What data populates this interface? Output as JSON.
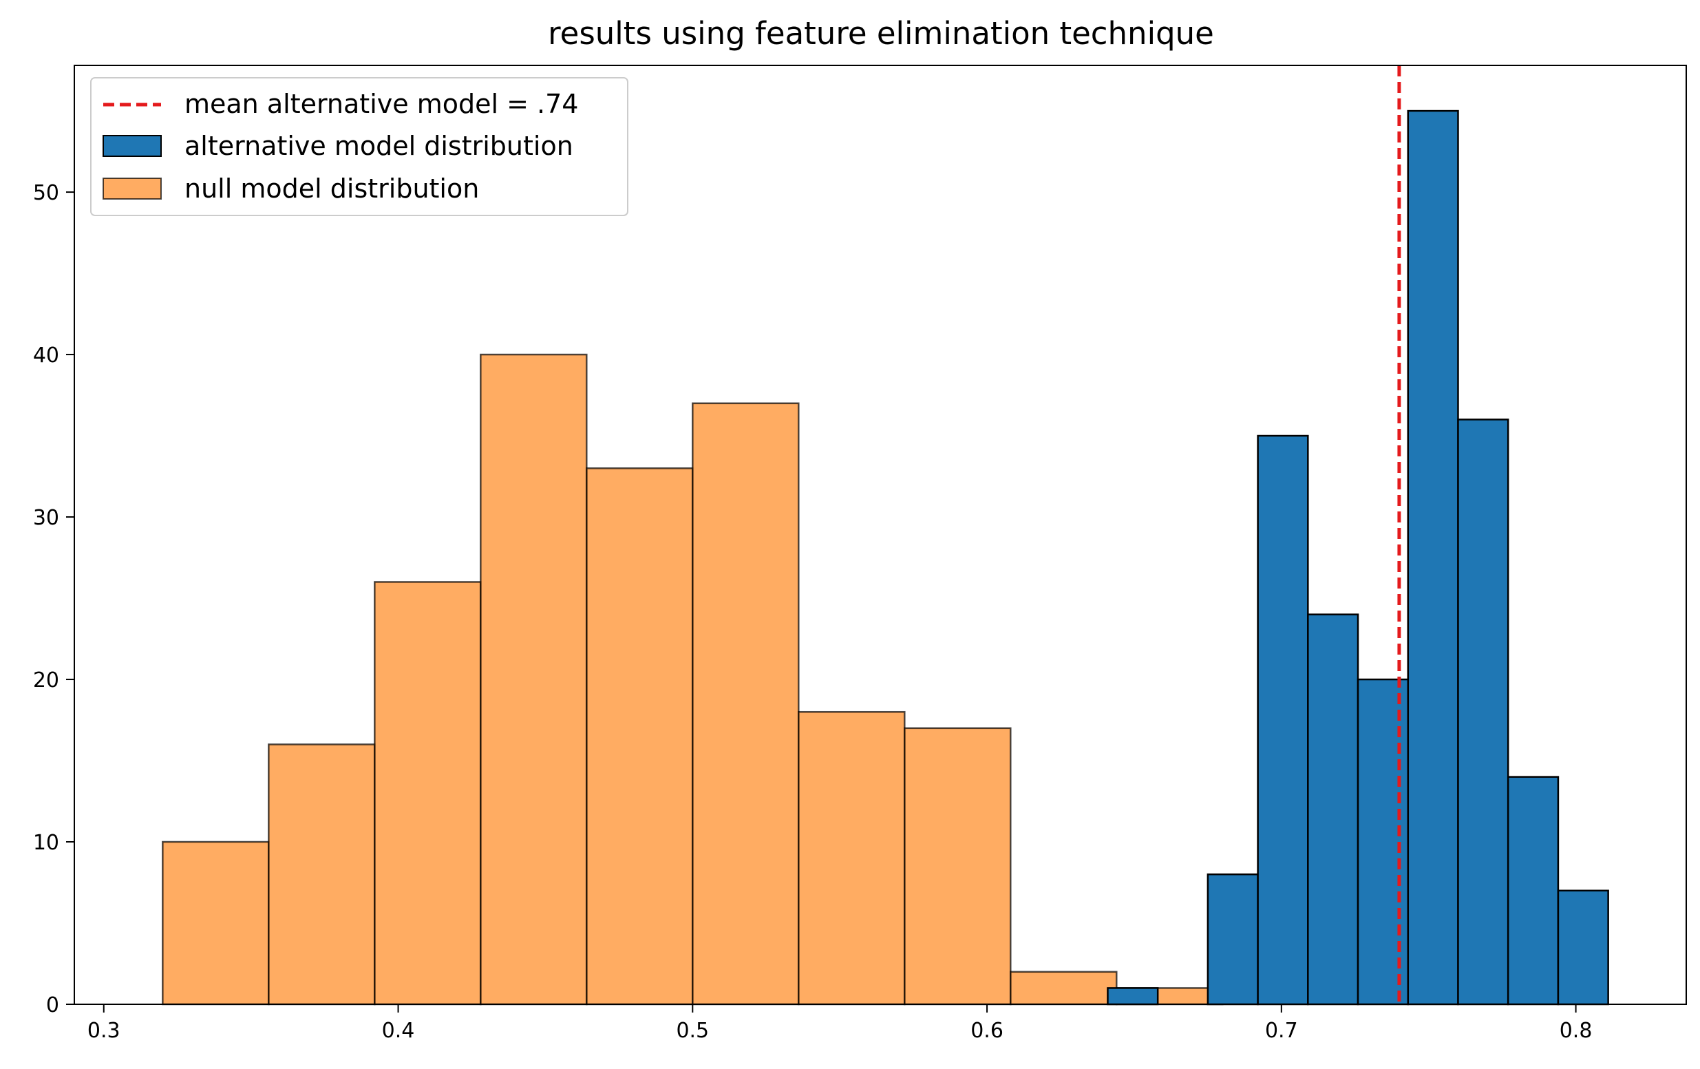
{
  "chart_data": {
    "type": "histogram",
    "title": "results using feature elimination technique",
    "xlabel": "",
    "ylabel": "",
    "xlim": [
      0.29,
      0.8375
    ],
    "ylim": [
      0,
      57.8
    ],
    "xticks": [
      "0.3",
      "0.4",
      "0.5",
      "0.6",
      "0.7",
      "0.8"
    ],
    "yticks": [
      "0",
      "10",
      "20",
      "30",
      "40",
      "50"
    ],
    "grid": false,
    "legend_position": "top-left",
    "series": [
      {
        "name": "null model distribution",
        "color": "#ff7f0e",
        "alpha": 0.65,
        "bin_edges": [
          0.32,
          0.356,
          0.392,
          0.428,
          0.464,
          0.5,
          0.536,
          0.572,
          0.608,
          0.644,
          0.68
        ],
        "counts": [
          10,
          16,
          26,
          40,
          33,
          37,
          18,
          17,
          2,
          1
        ]
      },
      {
        "name": "alternative model distribution",
        "color": "#1f77b4",
        "alpha": 1.0,
        "bin_edges": [
          0.641,
          0.658,
          0.675,
          0.692,
          0.709,
          0.726,
          0.743,
          0.76,
          0.777,
          0.794,
          0.811
        ],
        "counts": [
          1,
          0,
          8,
          35,
          24,
          20,
          55,
          36,
          14,
          7
        ]
      }
    ],
    "reference_line": {
      "label": "mean alternative model = .74",
      "x": 0.74,
      "color": "#e41a1c",
      "style": "dashed"
    }
  }
}
